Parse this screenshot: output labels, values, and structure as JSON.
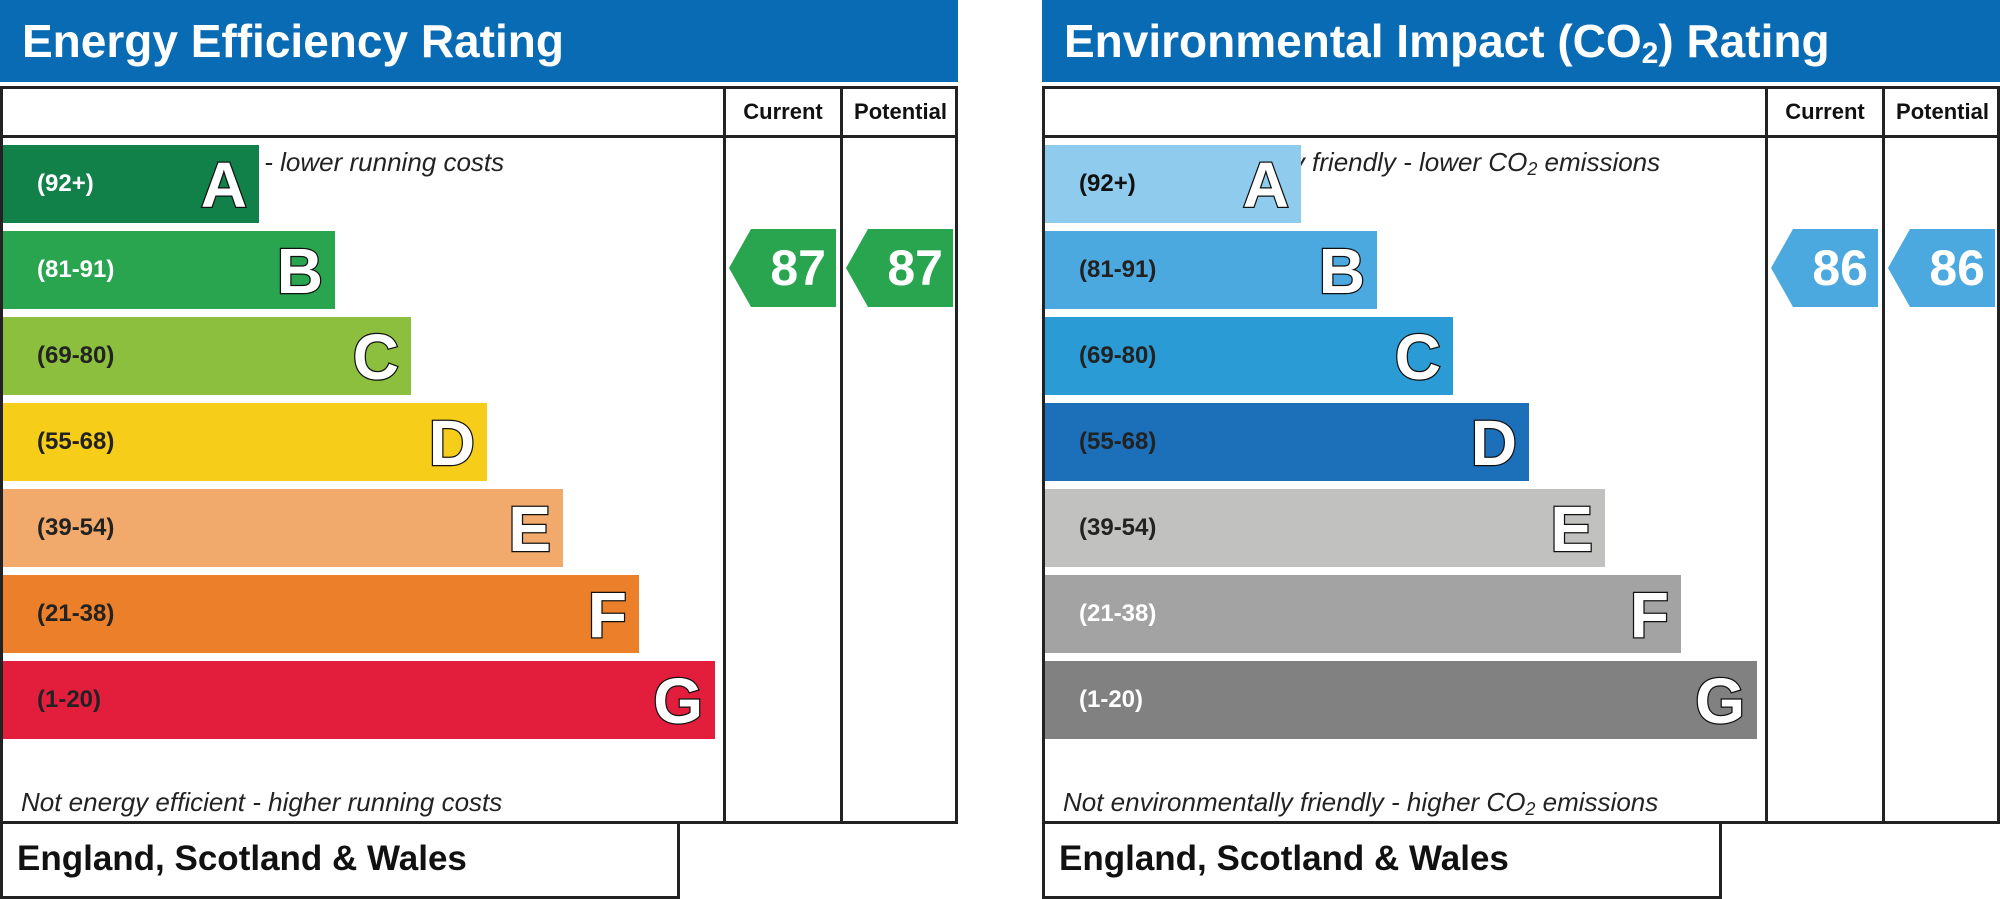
{
  "chart_data": [
    {
      "type": "bar",
      "title": "Energy Efficiency Rating",
      "header_color": "#0a6bb5",
      "column_headers": [
        "Current",
        "Potential"
      ],
      "note_top": "Very energy efficient - lower running costs",
      "note_bottom": "Not energy efficient - higher running costs",
      "region": "England, Scotland & Wales",
      "bands": [
        {
          "letter": "A",
          "range": "(92+)",
          "min": 92,
          "max": 100,
          "color": "#118049",
          "text_color": "#ffffff"
        },
        {
          "letter": "B",
          "range": "(81-91)",
          "min": 81,
          "max": 91,
          "color": "#2aa54f",
          "text_color": "#ffffff"
        },
        {
          "letter": "C",
          "range": "(69-80)",
          "min": 69,
          "max": 80,
          "color": "#8dbf3f",
          "text_color": "#222222"
        },
        {
          "letter": "D",
          "range": "(55-68)",
          "min": 55,
          "max": 68,
          "color": "#f6cd18",
          "text_color": "#222222"
        },
        {
          "letter": "E",
          "range": "(39-54)",
          "min": 39,
          "max": 54,
          "color": "#f1a96c",
          "text_color": "#222222"
        },
        {
          "letter": "F",
          "range": "(21-38)",
          "min": 21,
          "max": 38,
          "color": "#ec7f29",
          "text_color": "#222222"
        },
        {
          "letter": "G",
          "range": "(1-20)",
          "min": 1,
          "max": 20,
          "color": "#e21e3c",
          "text_color": "#222222"
        }
      ],
      "current": {
        "value": 87,
        "band": "B",
        "color": "#2aa54f"
      },
      "potential": {
        "value": 87,
        "band": "B",
        "color": "#2aa54f"
      }
    },
    {
      "type": "bar",
      "title": "Environmental Impact (CO2) Rating",
      "header_color": "#0a6bb5",
      "column_headers": [
        "Current",
        "Potential"
      ],
      "note_top": "Very environmentally friendly - lower CO2 emissions",
      "note_bottom": "Not environmentally friendly - higher CO2 emissions",
      "region": "England, Scotland & Wales",
      "bands": [
        {
          "letter": "A",
          "range": "(92+)",
          "min": 92,
          "max": 100,
          "color": "#8fcbec",
          "text_color": "#111111"
        },
        {
          "letter": "B",
          "range": "(81-91)",
          "min": 81,
          "max": 91,
          "color": "#4ca9df",
          "text_color": "#222222"
        },
        {
          "letter": "C",
          "range": "(69-80)",
          "min": 69,
          "max": 80,
          "color": "#2b9bd5",
          "text_color": "#222222"
        },
        {
          "letter": "D",
          "range": "(55-68)",
          "min": 55,
          "max": 68,
          "color": "#1b70b9",
          "text_color": "#222222"
        },
        {
          "letter": "E",
          "range": "(39-54)",
          "min": 39,
          "max": 54,
          "color": "#c1c1bf",
          "text_color": "#222222"
        },
        {
          "letter": "F",
          "range": "(21-38)",
          "min": 21,
          "max": 38,
          "color": "#a3a3a3",
          "text_color": "#ffffff"
        },
        {
          "letter": "G",
          "range": "(1-20)",
          "min": 1,
          "max": 20,
          "color": "#818181",
          "text_color": "#ffffff"
        }
      ],
      "current": {
        "value": 86,
        "band": "B",
        "color": "#4ca9df"
      },
      "potential": {
        "value": 86,
        "band": "B",
        "color": "#4ca9df"
      }
    }
  ]
}
